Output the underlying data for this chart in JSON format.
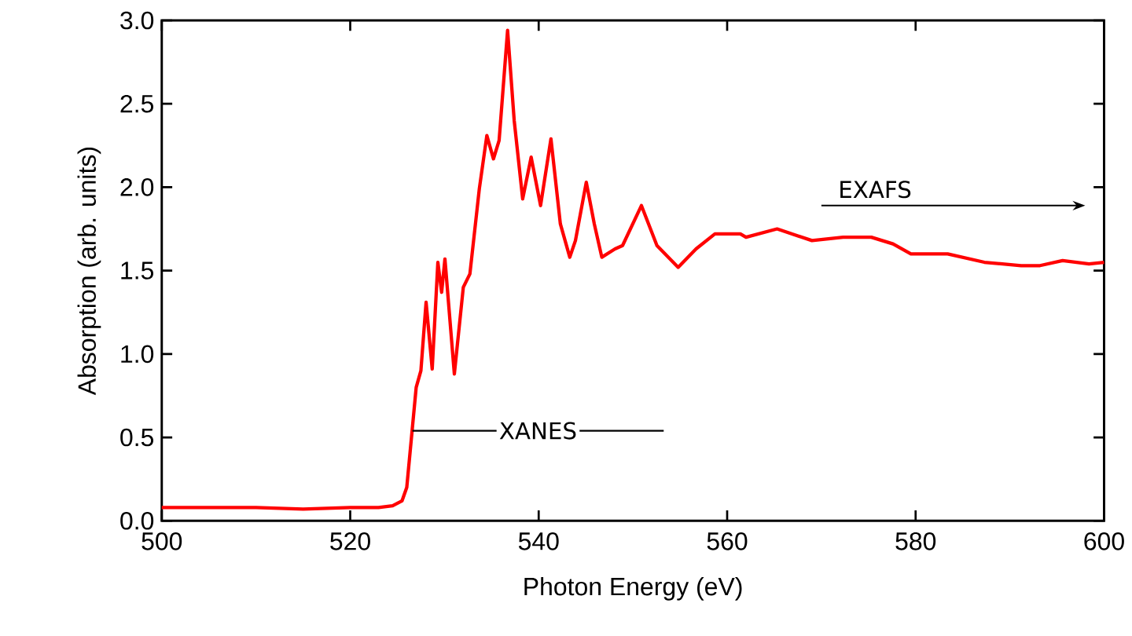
{
  "chart_data": {
    "type": "line",
    "xlabel": "Photon Energy (eV)",
    "ylabel": "Absorption (arb. units)",
    "xlim": [
      500,
      600
    ],
    "xticks": [
      500,
      520,
      540,
      560,
      580,
      600
    ],
    "ylim": [
      0,
      3
    ],
    "yticks": [
      {
        "value": 0,
        "label": "0.0"
      },
      {
        "value": 0.5,
        "label": "0.5"
      },
      {
        "value": 1,
        "label": "1.0"
      },
      {
        "value": 1.5,
        "label": "1.5"
      },
      {
        "value": 2,
        "label": "2.0"
      },
      {
        "value": 2.5,
        "label": "2.5"
      },
      {
        "value": 3,
        "label": "3.0"
      }
    ],
    "grid": false,
    "marker": "none",
    "line_style": "solid",
    "annotations": [
      {
        "text": "XANES",
        "x": 526.6,
        "y": 0.54
      },
      "EXAFS"
    ],
    "series": [
      {
        "color": "#ff0000",
        "x": [
          500,
          505,
          510,
          515,
          520,
          523,
          524.5,
          525.5,
          526,
          526.5,
          527,
          527.5,
          528.05,
          528.7,
          529.3,
          529.7,
          530.05,
          531.05,
          532,
          532.7,
          533.7,
          534.5,
          535.2,
          535.8,
          536.7,
          537.4,
          538.3,
          539.2,
          540.2,
          541.3,
          542.3,
          543.3,
          543.9,
          545.05,
          545.9,
          546.7,
          548.1,
          548.9,
          550.9,
          552.55,
          554.8,
          556.7,
          558.7,
          561.4,
          562,
          565.3,
          569,
          572.3,
          575.3,
          577.6,
          579.5,
          583.4,
          587.3,
          591.2,
          593.2,
          595.6,
          598.4,
          600
        ],
        "values": [
          0.08,
          0.08,
          0.08,
          0.07,
          0.08,
          0.08,
          0.09,
          0.12,
          0.2,
          0.5,
          0.8,
          0.9,
          1.31,
          0.91,
          1.55,
          1.37,
          1.57,
          0.88,
          1.4,
          1.48,
          1.99,
          2.31,
          2.17,
          2.28,
          2.94,
          2.4,
          1.93,
          2.18,
          1.89,
          2.29,
          1.78,
          1.58,
          1.68,
          2.03,
          1.78,
          1.58,
          1.63,
          1.65,
          1.89,
          1.65,
          1.52,
          1.63,
          1.72,
          1.72,
          1.7,
          1.75,
          1.68,
          1.7,
          1.7,
          1.66,
          1.6,
          1.6,
          1.55,
          1.53,
          1.53,
          1.56,
          1.54,
          1.55
        ]
      }
    ]
  }
}
